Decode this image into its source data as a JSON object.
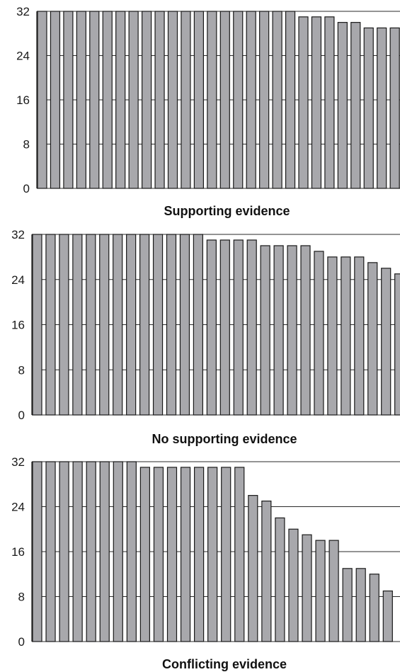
{
  "chart_data": [
    {
      "type": "bar",
      "title": "Supporting evidence",
      "ylim": [
        0,
        32
      ],
      "yticks": [
        "32",
        "24",
        "16",
        "8",
        "0"
      ],
      "grid": true,
      "colors": {
        "bar": "#a8a8ac",
        "edge": "#1a1a1a"
      },
      "values": [
        32,
        32,
        32,
        32,
        32,
        32,
        32,
        32,
        32,
        32,
        32,
        32,
        32,
        32,
        32,
        32,
        32,
        32,
        32,
        32,
        31,
        31,
        31,
        30,
        30,
        29,
        29,
        29
      ]
    },
    {
      "type": "bar",
      "title": "No supporting evidence",
      "ylim": [
        0,
        32
      ],
      "yticks": [
        "32",
        "24",
        "16",
        "8",
        "0"
      ],
      "grid": true,
      "colors": {
        "bar": "#a8a8ac",
        "edge": "#1a1a1a"
      },
      "values": [
        32,
        32,
        32,
        32,
        32,
        32,
        32,
        32,
        32,
        32,
        32,
        32,
        32,
        31,
        31,
        31,
        31,
        30,
        30,
        30,
        30,
        29,
        28,
        28,
        28,
        27,
        26,
        25
      ]
    },
    {
      "type": "bar",
      "title": "Conflicting evidence",
      "ylim": [
        0,
        32
      ],
      "yticks": [
        "32",
        "24",
        "16",
        "8",
        "0"
      ],
      "grid": true,
      "colors": {
        "bar": "#a8a8ac",
        "edge": "#1a1a1a"
      },
      "values": [
        32,
        32,
        32,
        32,
        32,
        32,
        32,
        32,
        31,
        31,
        31,
        31,
        31,
        31,
        31,
        31,
        26,
        25,
        22,
        20,
        19,
        18,
        18,
        13,
        13,
        12,
        9
      ]
    }
  ]
}
